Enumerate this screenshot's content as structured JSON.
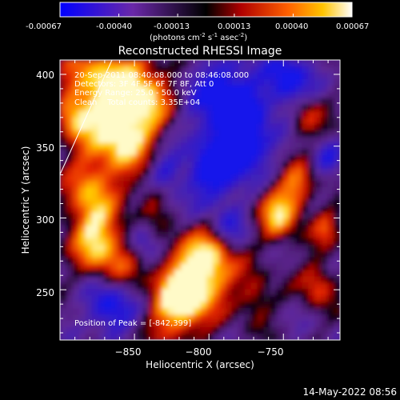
{
  "colorbar": {
    "tick_labels": [
      "-0.00067",
      "-0.00040",
      "-0.00013",
      "0.00013",
      "0.00040",
      "0.00067"
    ],
    "tick_values": [
      -0.00067,
      -0.0004,
      -0.00013,
      0.00013,
      0.0004,
      0.00067
    ],
    "range": [
      -0.00067,
      0.00067
    ],
    "units_prefix": "(photons cm",
    "units_sup1": "-2",
    "units_mid1": " s",
    "units_sup2": "-1",
    "units_mid2": " asec",
    "units_sup3": "-2",
    "units_suffix": ")"
  },
  "plot": {
    "title": "Reconstructed RHESSI Image",
    "x_axis_label": "Heliocentric X (arcsec)",
    "y_axis_label": "Heliocentric Y (arcsec)",
    "x_ticks": [
      "−850",
      "−800",
      "−750"
    ],
    "x_tick_values": [
      -850,
      -800,
      -750
    ],
    "y_ticks": [
      "250",
      "300",
      "350",
      "400"
    ],
    "y_tick_values": [
      250,
      300,
      350,
      400
    ],
    "x_range": [
      -900,
      -712
    ],
    "y_range": [
      215,
      410
    ]
  },
  "annotations": {
    "time_range": "20-Sep-2011 08:40:08.000 to 08:46:08.000",
    "detectors": "Detectors: 3F 4F 5F 6F 7F 8F, Att 0",
    "energy_range": "Energy Range: 25.0 - 50.0 keV",
    "clean_counts": "Clean    Total counts: 3.35E+04",
    "peak_position": "Position of Peak = [-842,399]"
  },
  "footer": {
    "date_time": "14-May-2022 08:56"
  },
  "colors": {
    "background": "#000000",
    "text": "#ffffff",
    "colormap": [
      "#0000ff",
      "#3a00c0",
      "#5a1890",
      "#6a1a8a",
      "#000000",
      "#8a0000",
      "#d01000",
      "#ff6a00",
      "#ffc400",
      "#ffffff"
    ]
  }
}
